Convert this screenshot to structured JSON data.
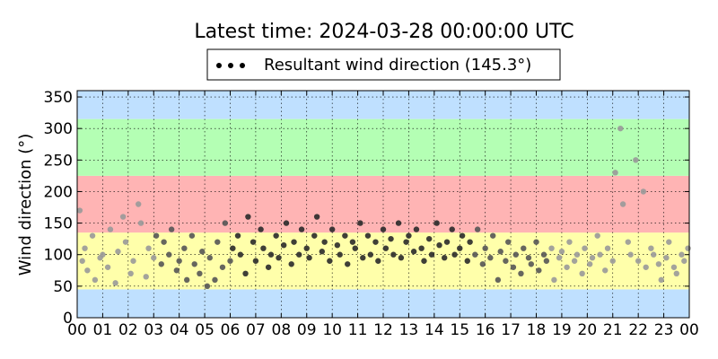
{
  "chart_data": {
    "type": "scatter",
    "title": "Latest time: 2024-03-28 00:00:00 UTC",
    "ylabel": "Wind direction (°)",
    "xlabel": "",
    "xlim": [
      0,
      24
    ],
    "ylim": [
      0,
      360
    ],
    "x_ticks": [
      "00",
      "01",
      "02",
      "03",
      "04",
      "05",
      "06",
      "07",
      "08",
      "09",
      "10",
      "11",
      "12",
      "13",
      "14",
      "15",
      "16",
      "17",
      "18",
      "19",
      "20",
      "21",
      "22",
      "23",
      "00"
    ],
    "y_ticks": [
      0,
      50,
      100,
      150,
      200,
      250,
      300,
      350
    ],
    "grid": true,
    "legend": {
      "placement": "top-center",
      "entries": [
        "Resultant wind direction (145.3°)"
      ]
    },
    "bands": [
      {
        "from": 0,
        "to": 45,
        "color": "#bfe0ff"
      },
      {
        "from": 45,
        "to": 135,
        "color": "#ffffaa"
      },
      {
        "from": 135,
        "to": 225,
        "color": "#ffb4b4"
      },
      {
        "from": 225,
        "to": 315,
        "color": "#b4ffb4"
      },
      {
        "from": 315,
        "to": 360,
        "color": "#bfe0ff"
      }
    ],
    "series": [
      {
        "color_note": "older points light grey, recent points dark",
        "x": [
          0.1,
          0.2,
          0.3,
          0.4,
          0.6,
          0.7,
          0.9,
          1.0,
          1.2,
          1.3,
          1.5,
          1.6,
          1.8,
          1.9,
          2.1,
          2.2,
          2.4,
          2.5,
          2.7,
          2.8,
          3.0,
          3.1,
          3.3,
          3.4,
          3.6,
          3.7,
          3.9,
          4.0,
          4.2,
          4.3,
          4.5,
          4.6,
          4.8,
          4.9,
          5.1,
          5.2,
          5.4,
          5.5,
          5.7,
          5.8,
          6.0,
          6.1,
          6.3,
          6.4,
          6.6,
          6.7,
          6.9,
          7.0,
          7.2,
          7.3,
          7.5,
          7.6,
          7.8,
          7.9,
          8.1,
          8.2,
          8.4,
          8.5,
          8.7,
          8.8,
          9.0,
          9.1,
          9.3,
          9.4,
          9.6,
          9.7,
          9.9,
          10.0,
          10.2,
          10.3,
          10.5,
          10.6,
          10.8,
          10.9,
          11.1,
          11.2,
          11.4,
          11.5,
          11.7,
          11.8,
          12.0,
          12.1,
          12.3,
          12.4,
          12.6,
          12.7,
          12.9,
          13.0,
          13.2,
          13.3,
          13.5,
          13.6,
          13.8,
          13.9,
          14.1,
          14.2,
          14.4,
          14.5,
          14.7,
          14.8,
          15.0,
          15.1,
          15.3,
          15.4,
          15.6,
          15.7,
          15.9,
          16.0,
          16.2,
          16.3,
          16.5,
          16.6,
          16.8,
          16.9,
          17.1,
          17.2,
          17.4,
          17.5,
          17.7,
          17.8,
          18.0,
          18.1,
          18.3,
          18.4,
          18.6,
          18.7,
          18.9,
          19.0,
          19.2,
          19.3,
          19.5,
          19.6,
          19.8,
          19.9,
          20.1,
          20.2,
          20.4,
          20.5,
          20.7,
          20.8,
          21.0,
          21.1,
          21.3,
          21.4,
          21.6,
          21.7,
          21.9,
          22.0,
          22.2,
          22.3,
          22.5,
          22.6,
          22.8,
          22.9,
          23.1,
          23.2,
          23.4,
          23.5,
          23.7,
          23.8,
          23.95
        ],
        "y": [
          170,
          90,
          110,
          75,
          130,
          60,
          95,
          100,
          80,
          140,
          55,
          105,
          160,
          120,
          70,
          90,
          180,
          150,
          65,
          110,
          95,
          130,
          85,
          120,
          100,
          140,
          75,
          90,
          110,
          60,
          130,
          85,
          70,
          105,
          50,
          95,
          60,
          120,
          80,
          150,
          90,
          110,
          130,
          100,
          70,
          160,
          120,
          90,
          140,
          110,
          80,
          100,
          130,
          95,
          115,
          150,
          85,
          120,
          100,
          140,
          110,
          95,
          130,
          160,
          105,
          120,
          90,
          140,
          115,
          100,
          130,
          85,
          120,
          110,
          150,
          95,
          130,
          100,
          120,
          90,
          140,
          110,
          125,
          100,
          150,
          95,
          120,
          130,
          105,
          140,
          110,
          90,
          125,
          100,
          150,
          115,
          95,
          120,
          140,
          100,
          110,
          130,
          90,
          120,
          100,
          140,
          85,
          110,
          95,
          130,
          60,
          105,
          90,
          120,
          80,
          100,
          70,
          110,
          95,
          85,
          120,
          75,
          100,
          90,
          110,
          60,
          95,
          105,
          80,
          120,
          90,
          100,
          70,
          110,
          85,
          95,
          130,
          100,
          75,
          110,
          90,
          230,
          300,
          180,
          120,
          100,
          250,
          90,
          200,
          80,
          110,
          100,
          85,
          60,
          95,
          120,
          80,
          70,
          100,
          90,
          110
        ]
      }
    ]
  }
}
